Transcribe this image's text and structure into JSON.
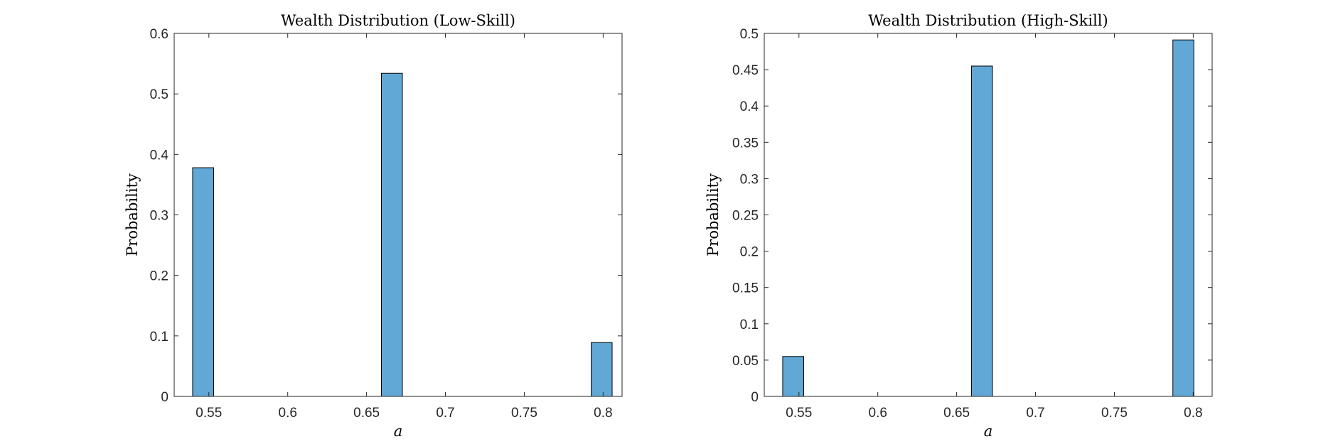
{
  "chart_data": [
    {
      "type": "bar",
      "title": "Wealth Distribution (Low-Skill)",
      "xlabel": "a",
      "ylabel": "Probability",
      "xlim": [
        0.528,
        0.812
      ],
      "ylim": [
        0,
        0.6
      ],
      "xticks": [
        0.55,
        0.6,
        0.65,
        0.7,
        0.75,
        0.8
      ],
      "xtick_labels": [
        "0.55",
        "0.6",
        "0.65",
        "0.7",
        "0.75",
        "0.8"
      ],
      "yticks": [
        0,
        0.1,
        0.2,
        0.3,
        0.4,
        0.5,
        0.6
      ],
      "ytick_labels": [
        "0",
        "0.1",
        "0.2",
        "0.3",
        "0.4",
        "0.5",
        "0.6"
      ],
      "bin_width": 0.0133,
      "bars": [
        {
          "x0": 0.5397,
          "x1": 0.553,
          "value": 0.378
        },
        {
          "x0": 0.6594,
          "x1": 0.6727,
          "value": 0.534
        },
        {
          "x0": 0.7924,
          "x1": 0.8057,
          "value": 0.089
        }
      ],
      "color": "#62a8d6",
      "edge_color": "#000000",
      "grid": false
    },
    {
      "type": "bar",
      "title": "Wealth Distribution (High-Skill)",
      "xlabel": "a",
      "ylabel": "Probability",
      "xlim": [
        0.528,
        0.812
      ],
      "ylim": [
        0,
        0.5
      ],
      "xticks": [
        0.55,
        0.6,
        0.65,
        0.7,
        0.75,
        0.8
      ],
      "xtick_labels": [
        "0.55",
        "0.6",
        "0.65",
        "0.7",
        "0.75",
        "0.8"
      ],
      "yticks": [
        0,
        0.05,
        0.1,
        0.15,
        0.2,
        0.25,
        0.3,
        0.35,
        0.4,
        0.45,
        0.5
      ],
      "ytick_labels": [
        "0",
        "0.05",
        "0.1",
        "0.15",
        "0.2",
        "0.25",
        "0.3",
        "0.35",
        "0.4",
        "0.45",
        "0.5"
      ],
      "bin_width": 0.0133,
      "bars": [
        {
          "x0": 0.5397,
          "x1": 0.553,
          "value": 0.055
        },
        {
          "x0": 0.6594,
          "x1": 0.6727,
          "value": 0.455
        },
        {
          "x0": 0.7871,
          "x1": 0.8004,
          "value": 0.491
        }
      ],
      "color": "#62a8d6",
      "edge_color": "#000000",
      "grid": false
    }
  ]
}
